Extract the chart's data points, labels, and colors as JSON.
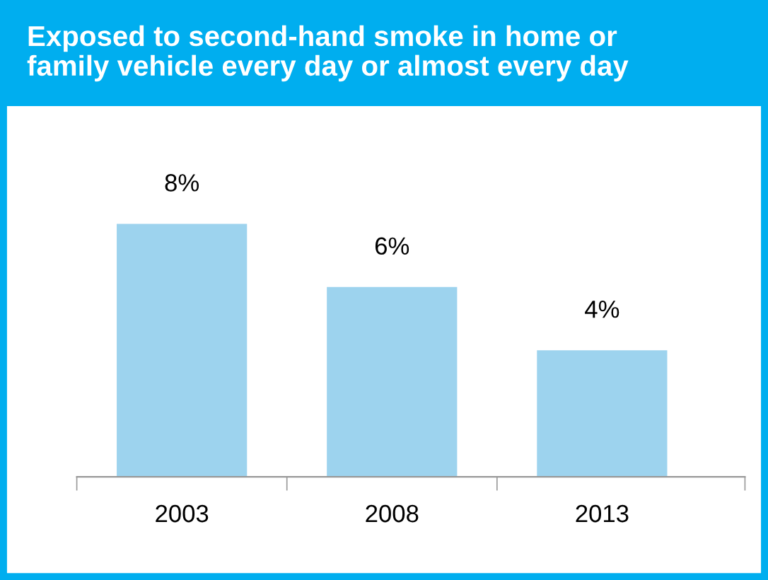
{
  "chart_data": {
    "type": "bar",
    "title": "Exposed to second-hand smoke in home or\nfamily vehicle every day or almost every day",
    "categories": [
      "2003",
      "2008",
      "2013"
    ],
    "values": [
      8,
      6,
      4
    ],
    "color": "#9dd3ee",
    "value_labels": [
      "8%",
      "6%",
      "4%"
    ],
    "grid": false,
    "legend": false
  }
}
